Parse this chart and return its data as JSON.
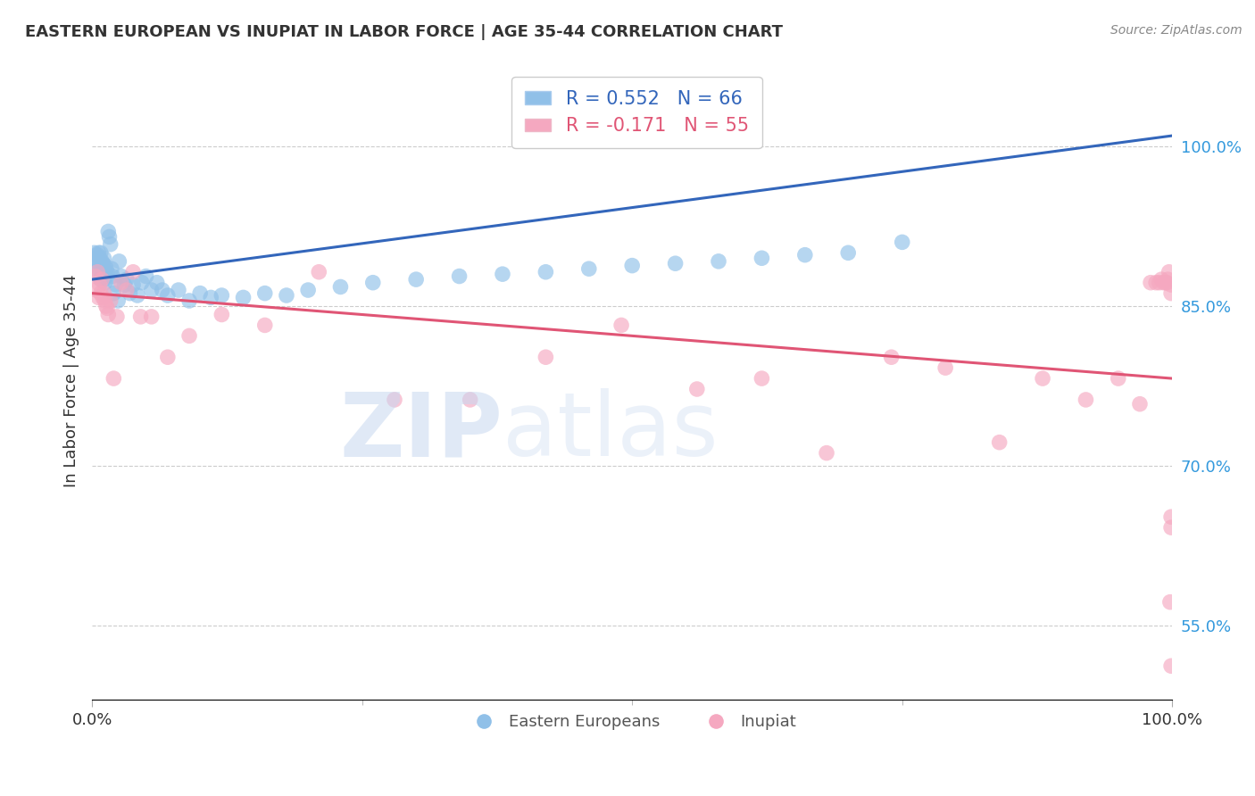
{
  "title": "EASTERN EUROPEAN VS INUPIAT IN LABOR FORCE | AGE 35-44 CORRELATION CHART",
  "source_text": "Source: ZipAtlas.com",
  "ylabel": "In Labor Force | Age 35-44",
  "xlim": [
    0.0,
    1.0
  ],
  "ylim": [
    0.48,
    1.08
  ],
  "yticks": [
    0.55,
    0.7,
    0.85,
    1.0
  ],
  "ytick_labels": [
    "55.0%",
    "70.0%",
    "85.0%",
    "100.0%"
  ],
  "xtick_labels": [
    "0.0%",
    "100.0%"
  ],
  "legend_r_blue": "R = 0.552",
  "legend_n_blue": "N = 66",
  "legend_r_pink": "R = -0.171",
  "legend_n_pink": "N = 55",
  "legend_label_blue": "Eastern Europeans",
  "legend_label_pink": "Inupiat",
  "blue_color": "#90C0E8",
  "pink_color": "#F5A8C0",
  "trend_blue_color": "#3366BB",
  "trend_pink_color": "#E05575",
  "background_color": "#ffffff",
  "blue_x": [
    0.002,
    0.003,
    0.004,
    0.005,
    0.005,
    0.006,
    0.006,
    0.007,
    0.007,
    0.008,
    0.008,
    0.009,
    0.009,
    0.01,
    0.01,
    0.011,
    0.011,
    0.012,
    0.012,
    0.013,
    0.013,
    0.014,
    0.015,
    0.016,
    0.017,
    0.018,
    0.019,
    0.02,
    0.022,
    0.024,
    0.025,
    0.027,
    0.03,
    0.032,
    0.035,
    0.038,
    0.042,
    0.046,
    0.05,
    0.055,
    0.06,
    0.065,
    0.07,
    0.08,
    0.09,
    0.1,
    0.11,
    0.12,
    0.14,
    0.16,
    0.18,
    0.2,
    0.23,
    0.26,
    0.3,
    0.34,
    0.38,
    0.42,
    0.46,
    0.5,
    0.54,
    0.58,
    0.62,
    0.66,
    0.7,
    0.75
  ],
  "blue_y": [
    0.9,
    0.895,
    0.892,
    0.898,
    0.888,
    0.9,
    0.885,
    0.895,
    0.88,
    0.9,
    0.875,
    0.892,
    0.878,
    0.89,
    0.882,
    0.895,
    0.875,
    0.888,
    0.872,
    0.885,
    0.878,
    0.882,
    0.92,
    0.915,
    0.908,
    0.885,
    0.878,
    0.862,
    0.87,
    0.855,
    0.892,
    0.878,
    0.87,
    0.875,
    0.862,
    0.87,
    0.86,
    0.872,
    0.878,
    0.865,
    0.872,
    0.865,
    0.86,
    0.865,
    0.855,
    0.862,
    0.858,
    0.86,
    0.858,
    0.862,
    0.86,
    0.865,
    0.868,
    0.872,
    0.875,
    0.878,
    0.88,
    0.882,
    0.885,
    0.888,
    0.89,
    0.892,
    0.895,
    0.898,
    0.9,
    0.91
  ],
  "pink_x": [
    0.003,
    0.004,
    0.005,
    0.006,
    0.007,
    0.008,
    0.009,
    0.01,
    0.011,
    0.012,
    0.013,
    0.014,
    0.015,
    0.017,
    0.02,
    0.023,
    0.027,
    0.032,
    0.038,
    0.045,
    0.055,
    0.07,
    0.09,
    0.12,
    0.16,
    0.21,
    0.28,
    0.35,
    0.42,
    0.49,
    0.56,
    0.62,
    0.68,
    0.74,
    0.79,
    0.84,
    0.88,
    0.92,
    0.95,
    0.97,
    0.98,
    0.985,
    0.988,
    0.99,
    0.992,
    0.994,
    0.995,
    0.996,
    0.997,
    0.998,
    0.999,
    0.999,
    0.999,
    0.999,
    0.999
  ],
  "pink_y": [
    0.878,
    0.865,
    0.882,
    0.858,
    0.87,
    0.862,
    0.875,
    0.858,
    0.862,
    0.855,
    0.85,
    0.848,
    0.842,
    0.855,
    0.782,
    0.84,
    0.872,
    0.865,
    0.882,
    0.84,
    0.84,
    0.802,
    0.822,
    0.842,
    0.832,
    0.882,
    0.762,
    0.762,
    0.802,
    0.832,
    0.772,
    0.782,
    0.712,
    0.802,
    0.792,
    0.722,
    0.782,
    0.762,
    0.782,
    0.758,
    0.872,
    0.872,
    0.872,
    0.875,
    0.872,
    0.872,
    0.872,
    0.875,
    0.882,
    0.572,
    0.652,
    0.642,
    0.862,
    0.512,
    0.87
  ]
}
